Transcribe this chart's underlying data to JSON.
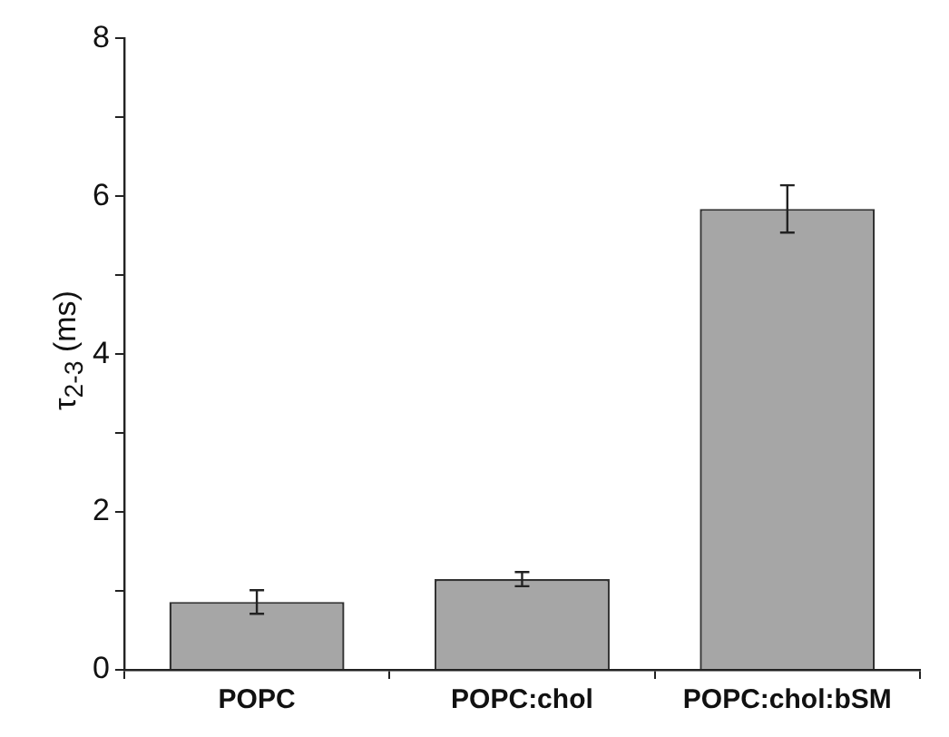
{
  "chart_data": {
    "type": "bar",
    "ylabel": "τ$_{2-3}$ (ms)",
    "categories": [
      "POPC",
      "POPC:chol",
      "POPC:chol:bSM"
    ],
    "values": [
      0.86,
      1.15,
      5.84
    ],
    "errors": [
      0.15,
      0.09,
      0.3
    ],
    "color": "#a6a6a6",
    "ylim": [
      0,
      8
    ],
    "yticks": [
      0,
      {
        "value": 1,
        "label": null
      },
      2,
      {
        "value": 3,
        "label": null
      },
      4,
      {
        "value": 5,
        "label": null
      },
      6,
      {
        "value": 7,
        "label": null
      },
      8
    ],
    "grid": false,
    "legend": false
  }
}
